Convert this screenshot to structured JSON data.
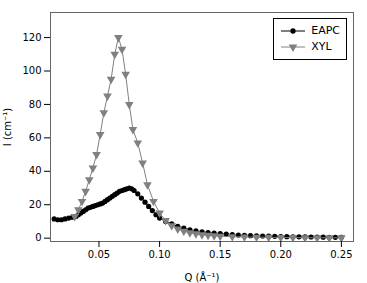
{
  "chart_data": {
    "type": "line",
    "title": "",
    "xlabel": "Q (Å⁻¹)",
    "ylabel": "I (cm⁻¹)",
    "xlim": [
      0.01,
      0.26
    ],
    "ylim": [
      -2,
      135
    ],
    "xticks": [
      0.05,
      {
        "value": 0.1,
        "label": "0.10"
      },
      0.15,
      {
        "value": 0.2,
        "label": "0.20"
      },
      0.25
    ],
    "yticks": [
      0,
      20,
      40,
      60,
      80,
      100,
      120
    ],
    "grid": false,
    "legend": "upper right",
    "series": [
      {
        "name": "EAPC",
        "color": "#000000",
        "marker": "circle",
        "line_style": "solid",
        "x": [
          0.013,
          0.016,
          0.019,
          0.022,
          0.025,
          0.028,
          0.031,
          0.033,
          0.035,
          0.037,
          0.039,
          0.041,
          0.043,
          0.045,
          0.047,
          0.049,
          0.051,
          0.053,
          0.055,
          0.057,
          0.059,
          0.061,
          0.063,
          0.065,
          0.067,
          0.069,
          0.071,
          0.073,
          0.075,
          0.077,
          0.079,
          0.082,
          0.085,
          0.088,
          0.091,
          0.094,
          0.097,
          0.1,
          0.105,
          0.11,
          0.115,
          0.12,
          0.125,
          0.13,
          0.135,
          0.14,
          0.145,
          0.15,
          0.155,
          0.16,
          0.165,
          0.17,
          0.175,
          0.18,
          0.185,
          0.19,
          0.195,
          0.2,
          0.205,
          0.21,
          0.215,
          0.22,
          0.225,
          0.23,
          0.235,
          0.24,
          0.245,
          0.25
        ],
        "values": [
          11.5,
          11.0,
          11.0,
          11.5,
          12.0,
          12.5,
          13.0,
          14.0,
          15.0,
          16.0,
          17.0,
          18.0,
          18.5,
          19.0,
          19.5,
          20.0,
          20.5,
          21.0,
          22.0,
          23.0,
          24.0,
          25.0,
          26.0,
          27.0,
          28.0,
          28.5,
          29.0,
          29.5,
          30.0,
          29.5,
          28.5,
          26.5,
          24.0,
          21.5,
          19.0,
          16.5,
          14.0,
          12.0,
          10.0,
          8.5,
          7.0,
          6.0,
          5.0,
          4.3,
          3.8,
          3.3,
          3.0,
          2.7,
          2.4,
          2.1,
          1.9,
          1.7,
          1.5,
          1.4,
          1.3,
          1.2,
          1.1,
          1.0,
          0.9,
          0.85,
          0.8,
          0.75,
          0.7,
          0.65,
          0.6,
          0.55,
          0.5,
          0.5
        ]
      },
      {
        "name": "XYL",
        "color": "#808080",
        "marker": "triangle-down",
        "line_style": "solid",
        "x": [
          0.03,
          0.033,
          0.036,
          0.039,
          0.042,
          0.045,
          0.048,
          0.051,
          0.054,
          0.057,
          0.06,
          0.063,
          0.066,
          0.069,
          0.072,
          0.075,
          0.078,
          0.082,
          0.086,
          0.09,
          0.095,
          0.1,
          0.105,
          0.11,
          0.115,
          0.12,
          0.125,
          0.13,
          0.135,
          0.14,
          0.145,
          0.15,
          0.16,
          0.17,
          0.18,
          0.19,
          0.2,
          0.21,
          0.22,
          0.23,
          0.24,
          0.25
        ],
        "values": [
          13.0,
          17.0,
          22.0,
          28.0,
          35.0,
          42.0,
          50.0,
          62.0,
          75.0,
          85.0,
          95.0,
          110.0,
          120.0,
          113.0,
          98.0,
          80.0,
          65.0,
          57.0,
          45.0,
          32.0,
          22.0,
          15.0,
          10.5,
          7.5,
          5.5,
          4.2,
          3.2,
          2.6,
          2.0,
          1.7,
          1.4,
          1.2,
          0.9,
          0.7,
          0.6,
          0.5,
          0.4,
          0.35,
          0.3,
          0.25,
          0.2,
          0.2
        ]
      }
    ]
  }
}
